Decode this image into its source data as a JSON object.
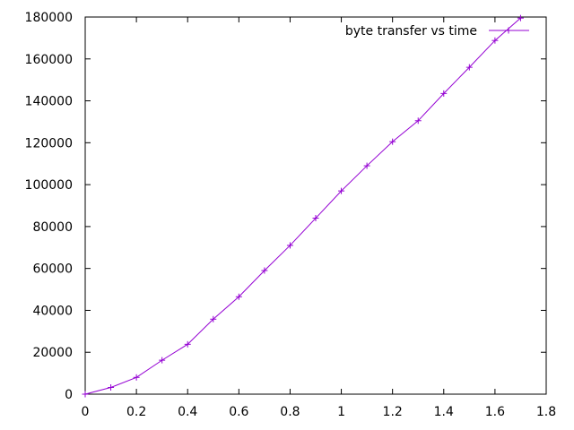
{
  "chart_data": {
    "type": "line",
    "title": "",
    "xlabel": "",
    "ylabel": "",
    "xlim": [
      0,
      1.8
    ],
    "ylim": [
      0,
      180000
    ],
    "x_ticks": [
      0,
      0.2,
      0.4,
      0.6,
      0.8,
      1,
      1.2,
      1.4,
      1.6,
      1.8
    ],
    "x_tick_labels": [
      "0",
      "0.2",
      "0.4",
      "0.6",
      "0.8",
      "1",
      "1.2",
      "1.4",
      "1.6",
      "1.8"
    ],
    "y_ticks": [
      0,
      20000,
      40000,
      60000,
      80000,
      100000,
      120000,
      140000,
      160000,
      180000
    ],
    "y_tick_labels": [
      "0",
      "20000",
      "40000",
      "60000",
      "80000",
      "100000",
      "120000",
      "140000",
      "160000",
      "180000"
    ],
    "grid": false,
    "legend_position": "top-right",
    "marker": "plus",
    "series": [
      {
        "name": "byte transfer vs time",
        "color": "#9400d3",
        "x": [
          0,
          0.1,
          0.2,
          0.3,
          0.4,
          0.5,
          0.6,
          0.7,
          0.8,
          0.9,
          1.0,
          1.1,
          1.2,
          1.3,
          1.4,
          1.5,
          1.6,
          1.7
        ],
        "y": [
          0,
          3200,
          8000,
          16200,
          23800,
          35800,
          46500,
          59000,
          71000,
          84000,
          97000,
          109000,
          120500,
          130500,
          143500,
          156000,
          168800,
          179500
        ]
      }
    ]
  }
}
